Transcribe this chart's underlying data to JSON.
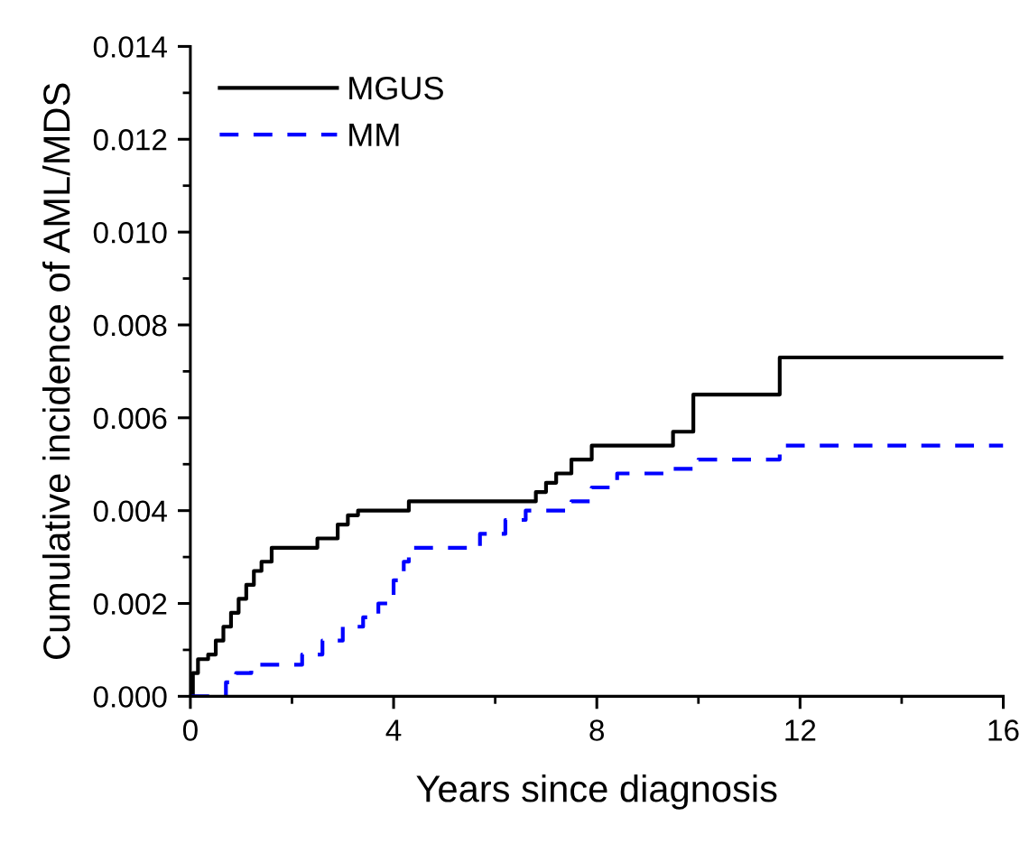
{
  "chart_data": {
    "type": "step",
    "xlabel": "Years since diagnosis",
    "ylabel": "Cumulative incidence of AML/MDS",
    "xlim": [
      0,
      16
    ],
    "xticks": [
      0,
      4,
      8,
      12,
      16
    ],
    "ylim": [
      0,
      0.014
    ],
    "yticks": [
      {
        "value": 0,
        "label": "0.000"
      },
      {
        "value": 0.002,
        "label": "0.002"
      },
      {
        "value": 0.004,
        "label": "0.004"
      },
      {
        "value": 0.006,
        "label": "0.006"
      },
      {
        "value": 0.008,
        "label": "0.008"
      },
      {
        "value": 0.01,
        "label": "0.010"
      },
      {
        "value": 0.012,
        "label": "0.012"
      },
      {
        "value": 0.014,
        "label": "0.014"
      }
    ],
    "legend": "top left",
    "grid": false,
    "marker": "none",
    "series": [
      {
        "name": "MGUS",
        "color": "#000000",
        "line_style": "solid",
        "x": [
          0,
          0.05,
          0.15,
          0.35,
          0.5,
          0.65,
          0.8,
          0.95,
          1.1,
          1.25,
          1.4,
          1.6,
          2.5,
          2.9,
          3.1,
          3.3,
          4.3,
          6.8,
          7.0,
          7.2,
          7.5,
          7.9,
          9.5,
          9.9,
          11.6,
          16
        ],
        "values": [
          0,
          0.0005,
          0.0008,
          0.0009,
          0.0012,
          0.0015,
          0.0018,
          0.0021,
          0.0024,
          0.0027,
          0.0029,
          0.0032,
          0.0034,
          0.0037,
          0.0039,
          0.004,
          0.0042,
          0.0044,
          0.0046,
          0.0048,
          0.0051,
          0.0054,
          0.0057,
          0.0065,
          0.0073,
          0.0073
        ]
      },
      {
        "name": "MM",
        "color": "#0000ff",
        "line_style": "dashed",
        "x": [
          0,
          0.7,
          0.9,
          1.2,
          2.2,
          2.6,
          3.0,
          3.4,
          3.7,
          4.0,
          4.2,
          4.3,
          5.7,
          6.2,
          6.6,
          7.5,
          7.9,
          8.4,
          9.5,
          10.0,
          11.6,
          16
        ],
        "values": [
          0,
          0.0003,
          0.0005,
          0.00068,
          0.0009,
          0.0012,
          0.0015,
          0.0017,
          0.002,
          0.0025,
          0.0029,
          0.0032,
          0.0035,
          0.0038,
          0.004,
          0.0042,
          0.0045,
          0.0048,
          0.0049,
          0.0051,
          0.0054,
          0.0054
        ]
      }
    ]
  }
}
